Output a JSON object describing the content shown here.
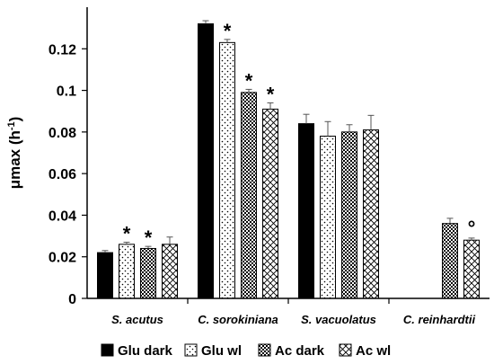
{
  "chart_data": {
    "type": "bar",
    "categories": [
      "S. acutus",
      "C. sorokiniana",
      "S. vacuolatus",
      "C. reinhardtii"
    ],
    "ylabel": "μmax (h-1)",
    "ylabel_main": "μmax (h",
    "ylabel_sup": "-1",
    "ylabel_end": ")",
    "ylim": [
      0,
      0.14
    ],
    "yticks": [
      0,
      0.02,
      0.04,
      0.06,
      0.08,
      0.1,
      0.12
    ],
    "ytick_labels": [
      "0",
      "0.02",
      "0.04",
      "0.06",
      "0.08",
      "0.1",
      "0.12"
    ],
    "grid": false,
    "legend_position": "bottom",
    "series": [
      {
        "name": "Glu dark",
        "pattern": "solid",
        "values": [
          0.022,
          0.132,
          0.084,
          null
        ],
        "errors": [
          0.001,
          0.0015,
          0.0045,
          null
        ],
        "annotations": [
          "",
          "",
          "",
          ""
        ]
      },
      {
        "name": "Glu wl",
        "pattern": "dots",
        "values": [
          0.026,
          0.123,
          0.078,
          null
        ],
        "errors": [
          0.001,
          0.0015,
          0.007,
          null
        ],
        "annotations": [
          "*",
          "*",
          "",
          ""
        ]
      },
      {
        "name": "Ac dark",
        "pattern": "checker",
        "values": [
          0.024,
          0.099,
          0.08,
          0.036
        ],
        "errors": [
          0.001,
          0.0015,
          0.0035,
          0.0025
        ],
        "annotations": [
          "*",
          "*",
          "",
          ""
        ]
      },
      {
        "name": "Ac wl",
        "pattern": "crosshatch",
        "values": [
          0.026,
          0.091,
          0.081,
          0.028
        ],
        "errors": [
          0.0035,
          0.003,
          0.007,
          0.001
        ],
        "annotations": [
          "",
          "*",
          "",
          "°"
        ]
      }
    ]
  }
}
